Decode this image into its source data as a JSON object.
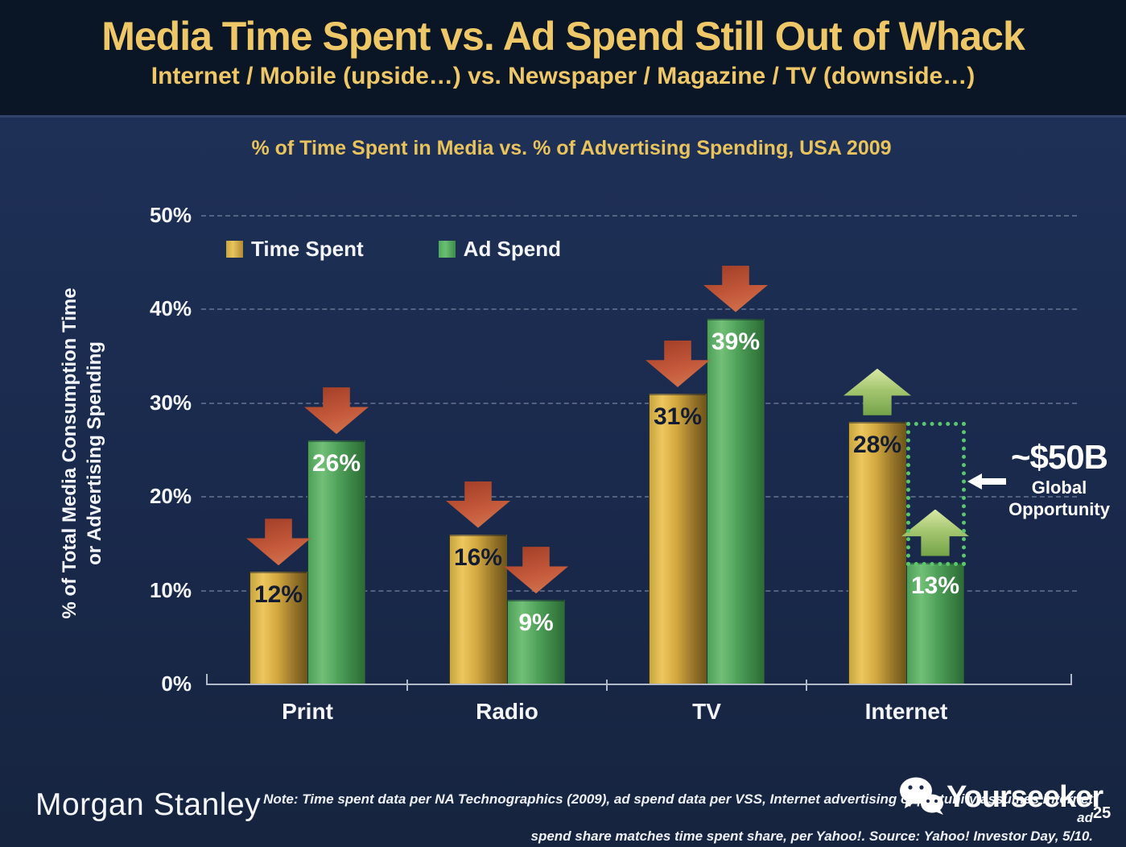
{
  "slide": {
    "title": "Media Time Spent vs. Ad Spend Still Out of Whack",
    "subtitle": "Internet / Mobile (upside…) vs. Newspaper / Magazine / TV (downside…)"
  },
  "chart_data": {
    "type": "bar",
    "title": "% of Time Spent in Media vs. % of Advertising Spending, USA 2009",
    "ylabel_line1": "% of Total Media Consumption Time",
    "ylabel_line2": "or Advertising Spending",
    "categories": [
      "Print",
      "Radio",
      "TV",
      "Internet"
    ],
    "series": [
      {
        "name": "Time Spent",
        "color_key": "gold",
        "values": [
          12,
          16,
          31,
          28
        ],
        "labels": [
          "12%",
          "16%",
          "31%",
          "28%"
        ]
      },
      {
        "name": "Ad Spend",
        "color_key": "green",
        "values": [
          26,
          9,
          39,
          13
        ],
        "labels": [
          "26%",
          "9%",
          "39%",
          "13%"
        ]
      }
    ],
    "yticks": [
      "0%",
      "10%",
      "20%",
      "30%",
      "40%",
      "50%"
    ],
    "ylim": [
      0,
      50
    ],
    "grid": "dashed horizontal gridlines every 10%",
    "legend_position": "top-left inside plot",
    "arrow_directions": [
      [
        "down",
        "down"
      ],
      [
        "down",
        "down"
      ],
      [
        "down",
        "down"
      ],
      [
        "up",
        "up"
      ]
    ],
    "annotation": {
      "value": "~$50B",
      "label_line1": "Global",
      "label_line2": "Opportunity",
      "target": "gap between Internet time spent (28%) and ad spend (13%)"
    }
  },
  "footer": {
    "brand": "Morgan Stanley",
    "note_line1": "Note: Time spent data per NA Technographics (2009), ad spend data per VSS, Internet advertising opportunity assumes internet ad",
    "note_line2": "spend share matches time spent share, per Yahoo!. Source: Yahoo! Investor Day, 5/10.",
    "watermark": "Yourseeker",
    "page_number": "25"
  },
  "colors": {
    "header_background": "#0a1525",
    "body_background": "#1a2a4d",
    "accent_gold_text": "#eec768",
    "bar_gold": "#dfb54b",
    "bar_green": "#57ad62",
    "arrow_red": "#c3583a",
    "arrow_light_green": "#a5c670",
    "dotted_green": "#5ac76d",
    "axis_gray": "#b2bac9"
  }
}
